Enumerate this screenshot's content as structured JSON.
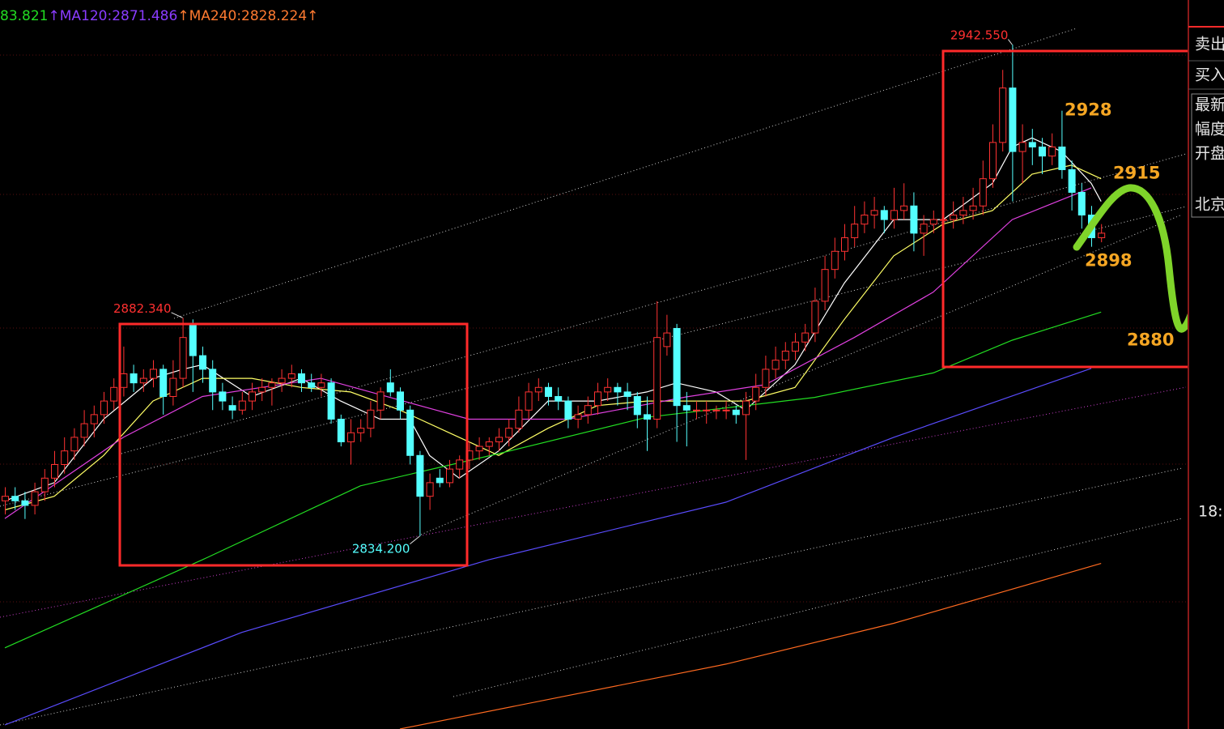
{
  "chart_data": {
    "type": "candlestick",
    "ylim": [
      2791.7,
      2952.4
    ],
    "up_color": "#ff3232",
    "down_color": "#54ffff",
    "legend": [
      {
        "text": "83.821",
        "color": "#22dd22"
      },
      {
        "text": "↑MA120:2871.486",
        "color": "#8a3cff"
      },
      {
        "text": "↑MA240:2828.224↑",
        "color": "#ff7a30"
      }
    ],
    "ohlc": [
      [
        2842,
        2845,
        2839,
        2843
      ],
      [
        2843,
        2845,
        2840,
        2842
      ],
      [
        2842,
        2844,
        2838,
        2841
      ],
      [
        2841,
        2846,
        2839,
        2844
      ],
      [
        2844,
        2849,
        2842,
        2847
      ],
      [
        2847,
        2853,
        2845,
        2850
      ],
      [
        2850,
        2856,
        2848,
        2853
      ],
      [
        2853,
        2858,
        2851,
        2856
      ],
      [
        2856,
        2862,
        2854,
        2859
      ],
      [
        2859,
        2863,
        2856,
        2861
      ],
      [
        2861,
        2866,
        2859,
        2864
      ],
      [
        2864,
        2869,
        2862,
        2867
      ],
      [
        2867,
        2876,
        2865,
        2870
      ],
      [
        2870,
        2872,
        2866,
        2868
      ],
      [
        2868,
        2871,
        2866,
        2869
      ],
      [
        2869,
        2873,
        2867,
        2871
      ],
      [
        2871,
        2872,
        2861,
        2865
      ],
      [
        2865,
        2873,
        2863,
        2869
      ],
      [
        2869,
        2882.34,
        2867,
        2878
      ],
      [
        2881,
        2882,
        2866,
        2874
      ],
      [
        2874,
        2876,
        2868,
        2871
      ],
      [
        2871,
        2873,
        2862,
        2866
      ],
      [
        2866,
        2868,
        2862,
        2864
      ],
      [
        2863,
        2865,
        2860,
        2862
      ],
      [
        2862,
        2866,
        2861,
        2864
      ],
      [
        2864,
        2868,
        2862,
        2866
      ],
      [
        2866,
        2869,
        2864,
        2867
      ],
      [
        2867,
        2869,
        2863,
        2868
      ],
      [
        2868,
        2871,
        2866,
        2869
      ],
      [
        2869,
        2872,
        2867,
        2870
      ],
      [
        2870,
        2871,
        2866,
        2868
      ],
      [
        2868,
        2870,
        2866,
        2867
      ],
      [
        2867,
        2870,
        2865,
        2868
      ],
      [
        2868,
        2869,
        2859,
        2860
      ],
      [
        2860,
        2861,
        2854,
        2855
      ],
      [
        2855,
        2860,
        2850,
        2857
      ],
      [
        2857,
        2860,
        2855,
        2858
      ],
      [
        2858,
        2864,
        2856,
        2862
      ],
      [
        2862,
        2867,
        2860,
        2866
      ],
      [
        2868,
        2871,
        2865,
        2866
      ],
      [
        2866,
        2867,
        2860,
        2862
      ],
      [
        2862,
        2863,
        2850,
        2852
      ],
      [
        2852,
        2853,
        2834.2,
        2843
      ],
      [
        2843,
        2848,
        2840,
        2846
      ],
      [
        2847,
        2849,
        2845,
        2846
      ],
      [
        2846,
        2851,
        2845,
        2849
      ],
      [
        2849,
        2852,
        2847,
        2851
      ],
      [
        2851,
        2855,
        2849,
        2853
      ],
      [
        2853,
        2856,
        2851,
        2854
      ],
      [
        2854,
        2856,
        2852,
        2855
      ],
      [
        2855,
        2858,
        2853,
        2856
      ],
      [
        2856,
        2860,
        2854,
        2858
      ],
      [
        2858,
        2865,
        2857,
        2862
      ],
      [
        2862,
        2868,
        2860,
        2866
      ],
      [
        2866,
        2869,
        2864,
        2867
      ],
      [
        2867,
        2868,
        2863,
        2865
      ],
      [
        2865,
        2867,
        2862,
        2864
      ],
      [
        2864,
        2865,
        2858,
        2860
      ],
      [
        2860,
        2863,
        2858,
        2861
      ],
      [
        2861,
        2865,
        2859,
        2863
      ],
      [
        2863,
        2868,
        2861,
        2866
      ],
      [
        2866,
        2869,
        2864,
        2867
      ],
      [
        2867,
        2868,
        2863,
        2866
      ],
      [
        2866,
        2868,
        2862,
        2865
      ],
      [
        2865,
        2866,
        2858,
        2861
      ],
      [
        2861,
        2865,
        2853,
        2860
      ],
      [
        2860,
        2886,
        2858,
        2878
      ],
      [
        2876,
        2883,
        2874,
        2879
      ],
      [
        2880,
        2881,
        2855,
        2863
      ],
      [
        2863,
        2866,
        2854,
        2862
      ],
      [
        2862,
        2864,
        2860,
        2862
      ],
      [
        2862,
        2864,
        2859,
        2862
      ],
      [
        2862,
        2863,
        2860,
        2862
      ],
      [
        2862,
        2864,
        2860,
        2862
      ],
      [
        2862,
        2863,
        2859,
        2861
      ],
      [
        2861,
        2866,
        2851,
        2864
      ],
      [
        2864,
        2870,
        2862,
        2867
      ],
      [
        2867,
        2874,
        2865,
        2871
      ],
      [
        2871,
        2876,
        2869,
        2873
      ],
      [
        2873,
        2877,
        2871,
        2875
      ],
      [
        2875,
        2879,
        2873,
        2877
      ],
      [
        2877,
        2881,
        2875,
        2879
      ],
      [
        2879,
        2889,
        2877,
        2886
      ],
      [
        2886,
        2896,
        2884,
        2893
      ],
      [
        2893,
        2900,
        2891,
        2897
      ],
      [
        2897,
        2903,
        2895,
        2900
      ],
      [
        2900,
        2907,
        2898,
        2903
      ],
      [
        2903,
        2908,
        2901,
        2905
      ],
      [
        2905,
        2909,
        2902,
        2906
      ],
      [
        2906,
        2907,
        2901,
        2904
      ],
      [
        2904,
        2911,
        2902,
        2906
      ],
      [
        2906,
        2912,
        2904,
        2907
      ],
      [
        2907,
        2910,
        2897,
        2901
      ],
      [
        2901,
        2905,
        2896,
        2903
      ],
      [
        2903,
        2906,
        2901,
        2904
      ],
      [
        2904,
        2907,
        2902,
        2904
      ],
      [
        2904,
        2908,
        2902,
        2905
      ],
      [
        2905,
        2909,
        2903,
        2906
      ],
      [
        2906,
        2911,
        2904,
        2907
      ],
      [
        2907,
        2917,
        2905,
        2913
      ],
      [
        2913,
        2925,
        2911,
        2921
      ],
      [
        2921,
        2937,
        2919,
        2933
      ],
      [
        2933,
        2942.55,
        2908,
        2919
      ],
      [
        2919,
        2925,
        2912,
        2921
      ],
      [
        2921,
        2924,
        2916,
        2920
      ],
      [
        2920,
        2922,
        2914,
        2918
      ],
      [
        2918,
        2923,
        2916,
        2920
      ],
      [
        2920,
        2928,
        2913,
        2915
      ],
      [
        2915,
        2917,
        2906,
        2910
      ],
      [
        2910,
        2912,
        2902,
        2905
      ],
      [
        2905,
        2907,
        2898,
        2900
      ],
      [
        2900,
        2903,
        2899,
        2901
      ]
    ],
    "ma_lines": [
      {
        "color": "#ffffff",
        "x": [
          0,
          5,
          10,
          15,
          18,
          20,
          25,
          30,
          34,
          38,
          41,
          43,
          46,
          50,
          55,
          60,
          65,
          68,
          72,
          75,
          80,
          85,
          90,
          95,
          100,
          102,
          104,
          107,
          110,
          111
        ],
        "values": [
          2842,
          2846,
          2860,
          2869,
          2871,
          2872,
          2865,
          2869,
          2864,
          2860,
          2860,
          2852,
          2847,
          2853,
          2864,
          2864,
          2866,
          2868,
          2866,
          2862,
          2872,
          2890,
          2904,
          2904,
          2912,
          2920,
          2922,
          2919,
          2912,
          2908
        ]
      },
      {
        "color": "#ffff66",
        "x": [
          0,
          5,
          10,
          15,
          20,
          25,
          30,
          35,
          40,
          45,
          50,
          55,
          60,
          65,
          70,
          75,
          80,
          85,
          90,
          95,
          100,
          104,
          108,
          111
        ],
        "values": [
          2840,
          2843,
          2852,
          2864,
          2869,
          2869,
          2867,
          2866,
          2862,
          2857,
          2852,
          2858,
          2863,
          2864,
          2864,
          2864,
          2867,
          2882,
          2896,
          2903,
          2906,
          2914,
          2916,
          2913
        ]
      },
      {
        "color": "#e040e0",
        "x": [
          0,
          12,
          20,
          32,
          47,
          57,
          69,
          77,
          86,
          94,
          102,
          110
        ],
        "values": [
          2838.1,
          2856,
          2865,
          2869,
          2860,
          2860,
          2864.9,
          2867.6,
          2878,
          2888,
          2904,
          2911
        ]
      },
      {
        "color": "#22dd22",
        "x": [
          0,
          20,
          36,
          50,
          65,
          82,
          94,
          102,
          111
        ],
        "values": [
          2809.6,
          2829,
          2845.3,
          2852.4,
          2860.4,
          2864.8,
          2870.2,
          2877.4,
          2883.6
        ]
      },
      {
        "color": "#5a4cff",
        "x": [
          0,
          24,
          49,
          73,
          90,
          110
        ],
        "values": [
          2792.6,
          2813,
          2829,
          2841.7,
          2856,
          2871.2
        ]
      },
      {
        "color": "#ff6a20",
        "x": [
          40,
          73,
          90,
          111
        ],
        "values": [
          2791.7,
          2806,
          2815,
          2828.2
        ]
      }
    ],
    "annotations": [
      {
        "value": 2942.55,
        "label": "2942.550",
        "color": "#ff3030"
      },
      {
        "value": 2882.34,
        "label": "2882.340",
        "color": "#ff3030"
      },
      {
        "value": 2834.2,
        "label": "2834.200",
        "color": "#54ffff"
      }
    ],
    "hand_labels": [
      2928,
      2915,
      2898,
      2880
    ],
    "hand_label_color": "#f5a623"
  },
  "panel": {
    "labels": [
      "卖出",
      "买入",
      "最新",
      "幅度",
      "开盘",
      "北京"
    ],
    "time": "18:"
  }
}
